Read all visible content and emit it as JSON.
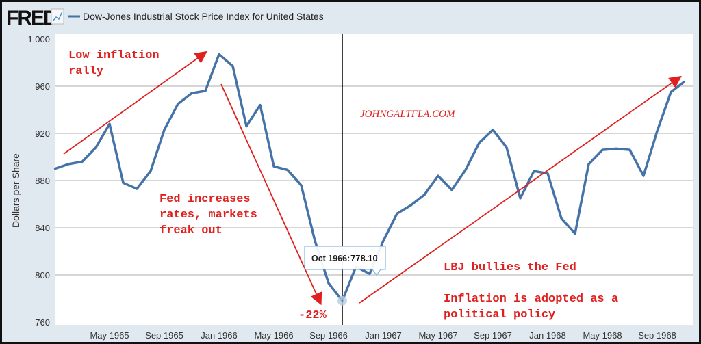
{
  "header": {
    "logo": "FRED",
    "series_title": "Dow-Jones Industrial Stock Price Index for United States",
    "series_color": "#4572a7"
  },
  "chart_data": {
    "type": "line",
    "title": "Dow-Jones Industrial Stock Price Index for United States",
    "ylabel": "Dollars per Share",
    "xlabel": "",
    "ylim": [
      760,
      1000
    ],
    "yticks": [
      760,
      800,
      840,
      880,
      920,
      960,
      1000
    ],
    "ytick_labels": [
      "760",
      "800",
      "840",
      "880",
      "920",
      "960",
      "1,000"
    ],
    "x_start": "Jan 1965",
    "xtick_labels": [
      "May 1965",
      "Sep 1965",
      "Jan 1966",
      "May 1966",
      "Sep 1966",
      "Jan 1967",
      "May 1967",
      "Sep 1967",
      "Jan 1968",
      "May 1968",
      "Sep 1968"
    ],
    "xtick_month_index": [
      4,
      8,
      12,
      16,
      20,
      24,
      28,
      32,
      36,
      40,
      44
    ],
    "grid": true,
    "series": [
      {
        "name": "Dow-Jones Industrial Stock Price Index",
        "color": "#4572a7",
        "values": [
          890,
          894,
          896,
          908,
          928,
          878,
          873,
          888,
          923,
          945,
          954,
          956,
          987,
          977,
          926,
          944,
          892,
          889,
          876,
          829,
          793,
          778.1,
          807,
          801,
          829,
          852,
          859,
          868,
          884,
          872,
          889,
          912,
          923,
          908,
          865,
          888,
          886,
          848,
          835,
          894,
          906,
          907,
          906,
          884,
          922,
          955,
          964
        ]
      }
    ],
    "tooltip": {
      "label": "Oct 1966:",
      "value": "778.10",
      "month_index": 21
    },
    "annotations": {
      "rally": [
        "Low inflation",
        "rally"
      ],
      "fed": [
        "Fed increases",
        "rates, markets",
        "freak out"
      ],
      "drop": "-22%",
      "lbj": "LBJ bullies the Fed",
      "policy": [
        "Inflation is adopted as a",
        "political policy"
      ],
      "watermark": "JOHNGALTFLA.COM"
    }
  }
}
